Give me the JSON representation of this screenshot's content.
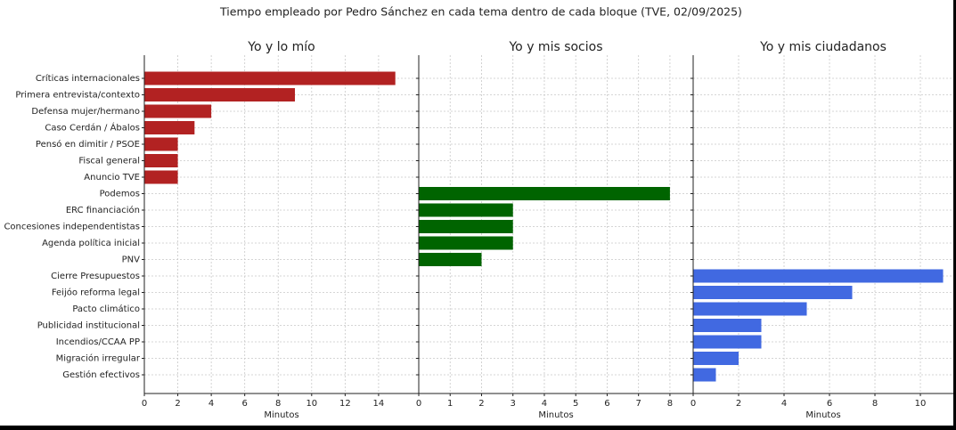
{
  "title": "Tiempo empleado por Pedro Sánchez en cada tema dentro de cada bloque (TVE, 02/09/2025)",
  "chart_data": [
    {
      "type": "barh",
      "title": "Yo y lo mío",
      "x_label": "Minutos",
      "color": "#b22222",
      "grid": true,
      "categories": [
        "Críticas internacionales",
        "Primera entrevista/contexto",
        "Defensa mujer/hermano",
        "Caso Cerdán / Ábalos",
        "Pensó en dimitir / PSOE",
        "Fiscal general",
        "Anuncio TVE",
        "Podemos",
        "ERC financiación",
        "Concesiones independentistas",
        "Agenda política inicial",
        "PNV",
        "Cierre Presupuestos",
        "Feijóo reforma legal",
        "Pacto climático",
        "Publicidad institucional",
        "Incendios/CCAA PP",
        "Migración irregular",
        "Gestión efectivos"
      ],
      "values": [
        15,
        9,
        4,
        3,
        2,
        2,
        2,
        null,
        null,
        null,
        null,
        null,
        null,
        null,
        null,
        null,
        null,
        null,
        null
      ],
      "xlim": [
        0,
        16.4
      ],
      "xticks": [
        0,
        2,
        4,
        6,
        8,
        10,
        12,
        14
      ]
    },
    {
      "type": "barh",
      "title": "Yo y mis socios",
      "x_label": "Minutos",
      "color": "#006400",
      "grid": true,
      "values": [
        null,
        null,
        null,
        null,
        null,
        null,
        null,
        8,
        3,
        3,
        3,
        2,
        null,
        null,
        null,
        null,
        null,
        null,
        null
      ],
      "xlim": [
        0,
        8.74
      ],
      "xticks": [
        0,
        1,
        2,
        3,
        4,
        5,
        6,
        7,
        8
      ]
    },
    {
      "type": "barh",
      "title": "Yo y mis ciudadanos",
      "x_label": "Minutos",
      "color": "#4169e1",
      "grid": true,
      "values": [
        null,
        null,
        null,
        null,
        null,
        null,
        null,
        null,
        null,
        null,
        null,
        null,
        11,
        7,
        5,
        3,
        3,
        2,
        1
      ],
      "xlim": [
        0,
        11.45
      ],
      "xticks": [
        0,
        2,
        4,
        6,
        8,
        10
      ]
    }
  ]
}
